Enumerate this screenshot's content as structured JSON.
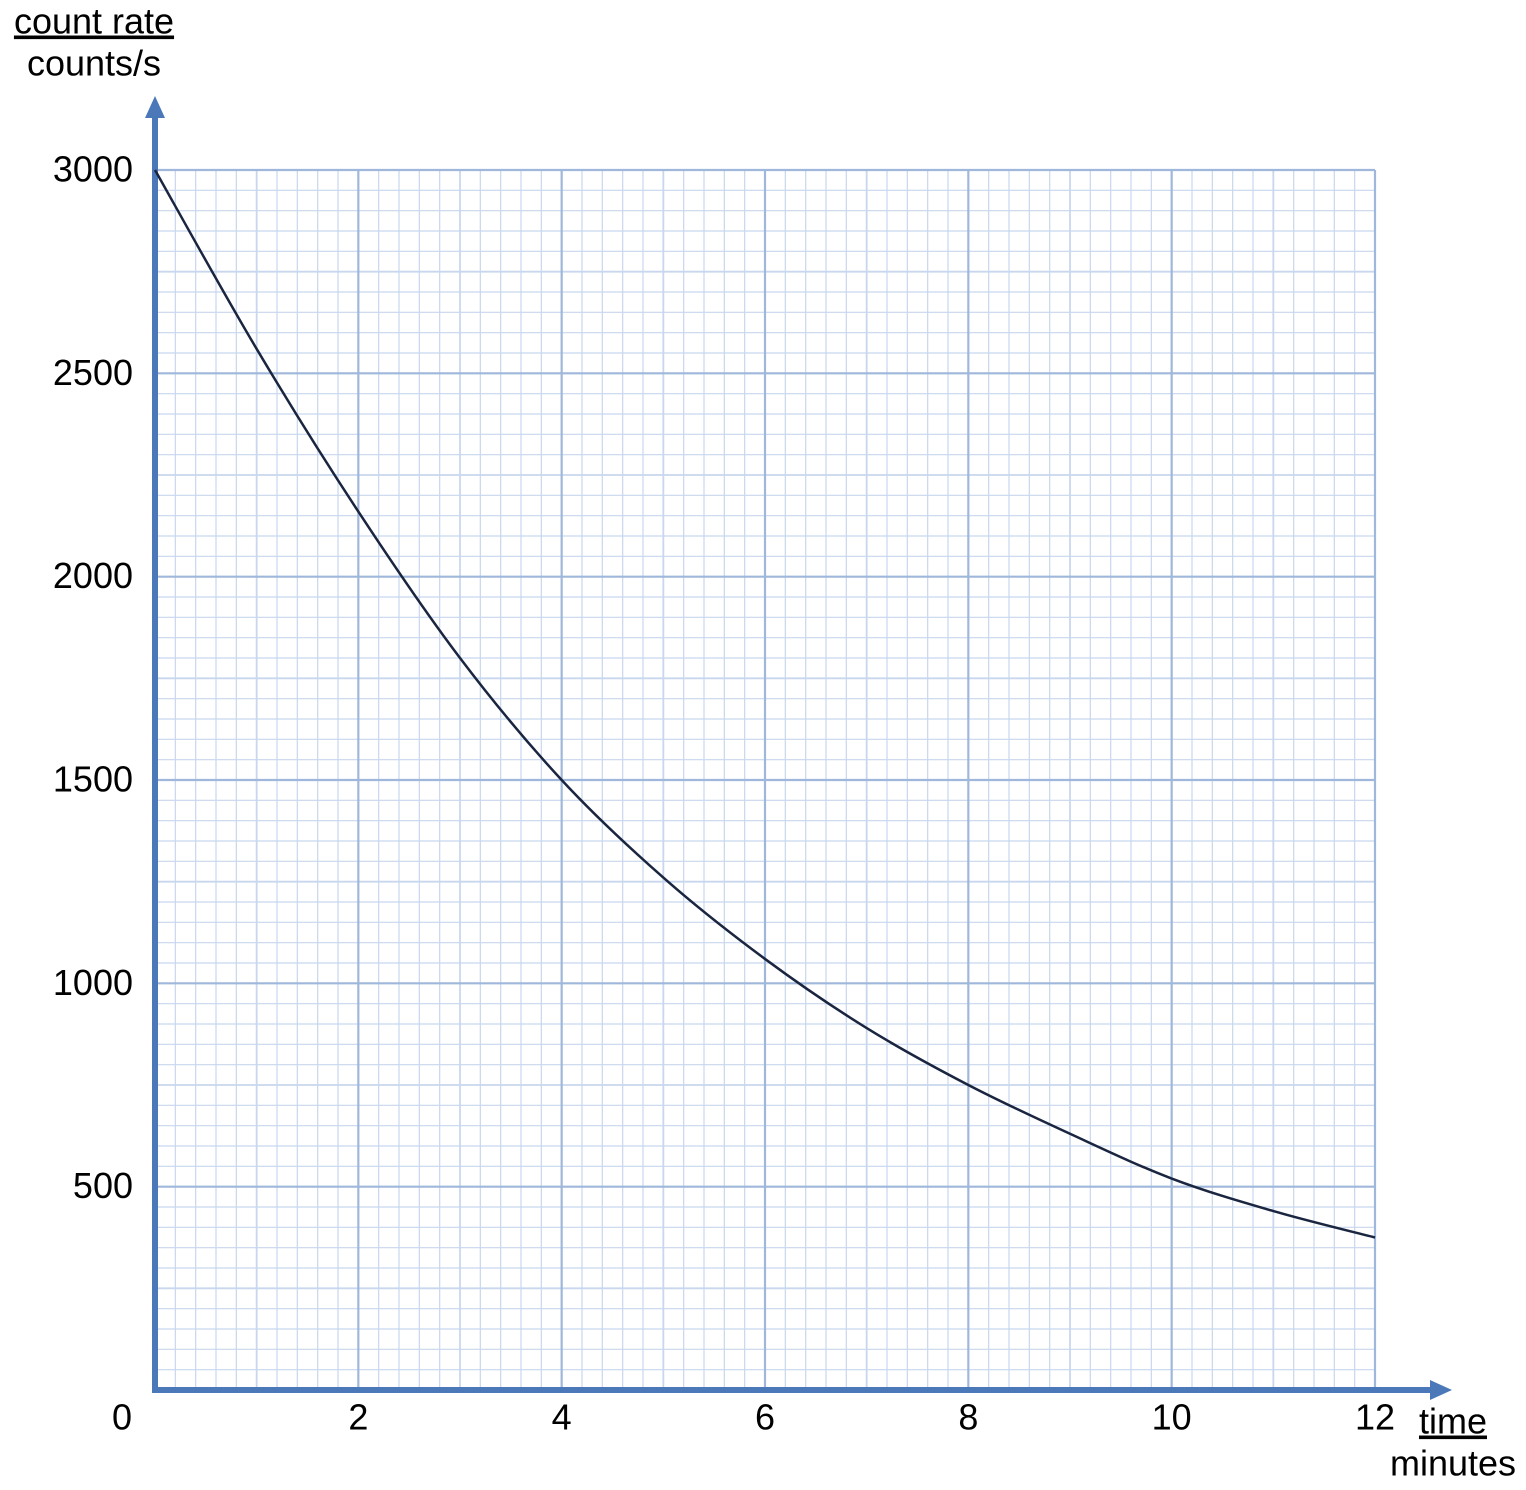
{
  "chart_data": {
    "type": "line",
    "y_label": "count rate",
    "y_unit": "counts/s",
    "x_label": "time",
    "x_unit": "minutes",
    "x": [
      0,
      1,
      2,
      3,
      4,
      5,
      6,
      7,
      8,
      9,
      10,
      11,
      12
    ],
    "series": [
      {
        "color": "#1a2540",
        "values": [
          3000,
          2560,
          2160,
          1800,
          1500,
          1260,
          1060,
          890,
          750,
          630,
          520,
          440,
          375
        ]
      }
    ],
    "xlim": [
      0,
      12
    ],
    "ylim": [
      0,
      3000
    ],
    "xticks": [
      0,
      2,
      4,
      6,
      8,
      10,
      12
    ],
    "yticks": [
      500,
      1000,
      1500,
      2000,
      2500,
      3000
    ],
    "grid": true,
    "minor_grid": true,
    "axis_color": "#4a78b8"
  }
}
